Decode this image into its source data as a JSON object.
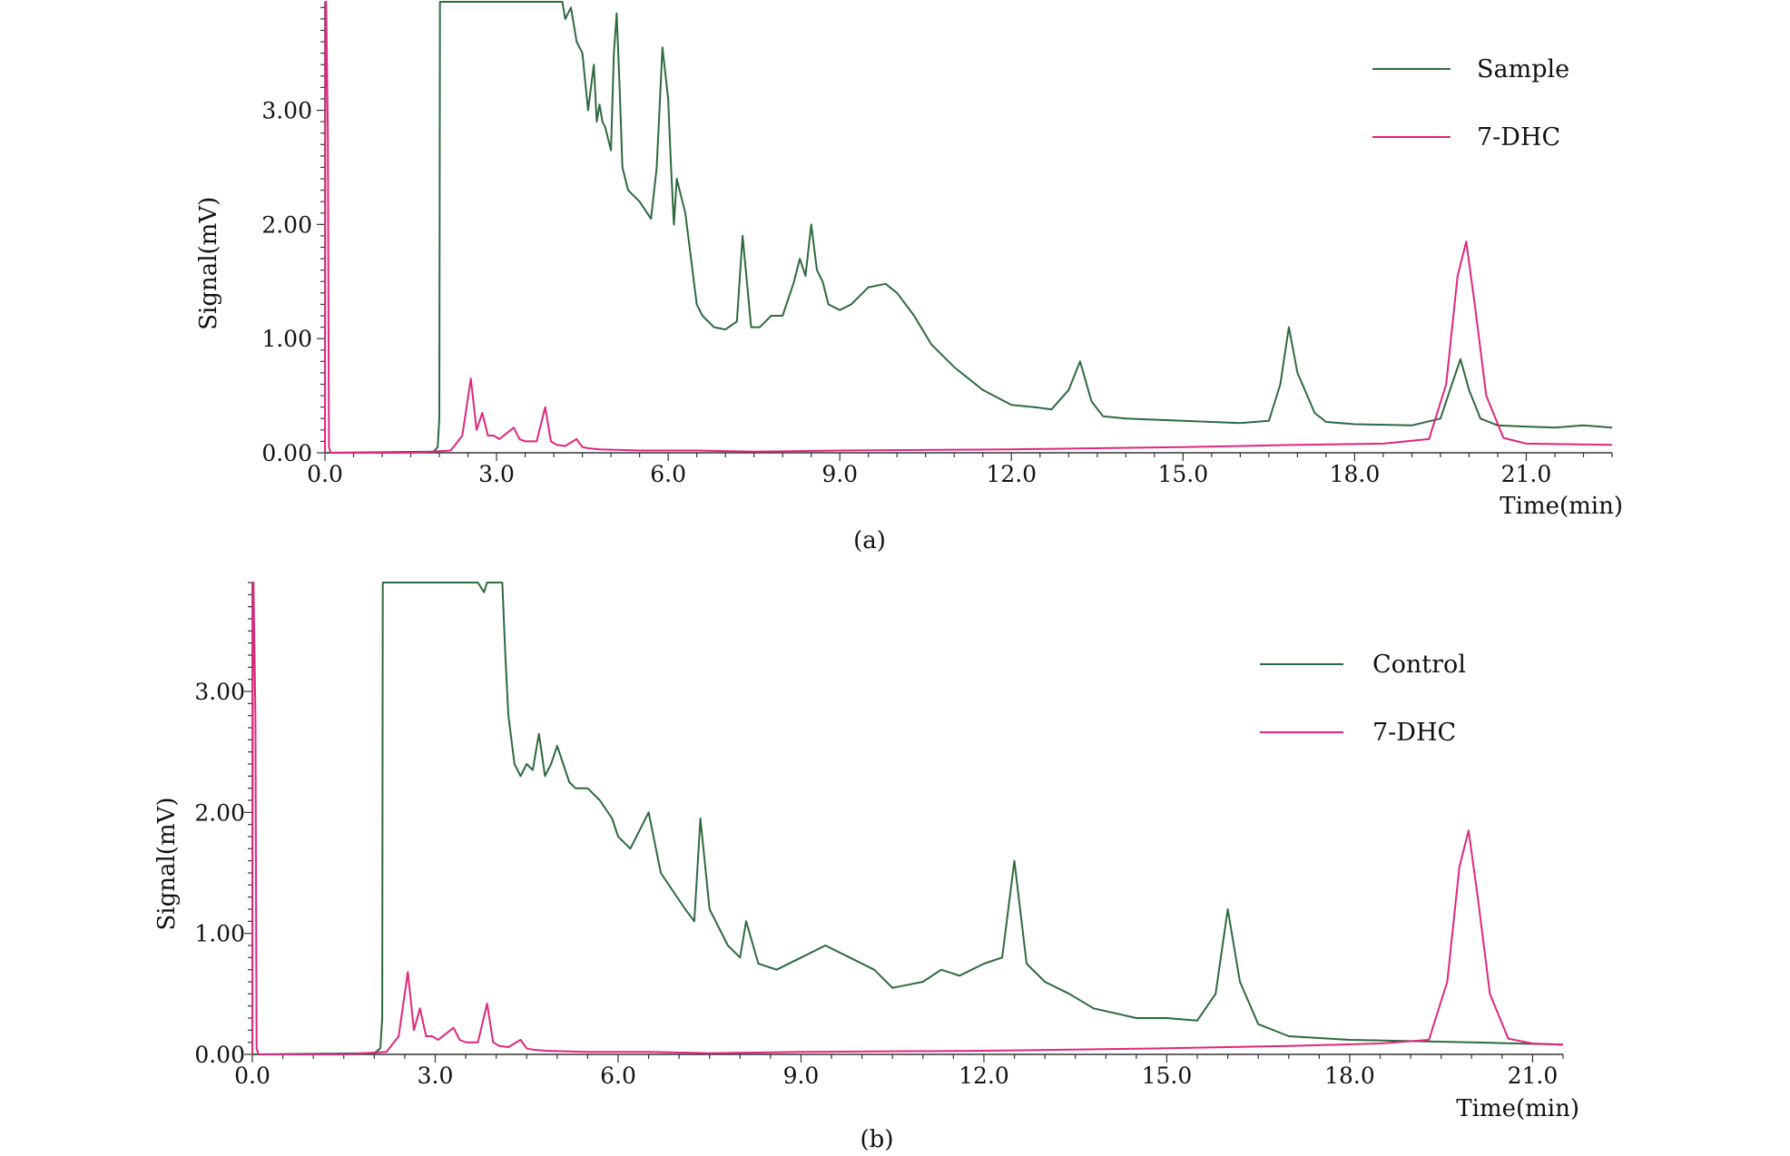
{
  "colors": {
    "green": "#2d6a3e",
    "magenta": "#e0267d",
    "axis": "#333333"
  },
  "chart_data": [
    {
      "type": "line",
      "caption": "(a)",
      "xlabel": "Time(min)",
      "ylabel": "Signal(mV)",
      "xlim": [
        0,
        22.5
      ],
      "ylim": [
        0,
        3.95
      ],
      "xticks": [
        0,
        3,
        6,
        9,
        12,
        15,
        18,
        21
      ],
      "xtick_labels": [
        "0.0",
        "3.0",
        "6.0",
        "9.0",
        "12.0",
        "15.0",
        "18.0",
        "21.0"
      ],
      "yticks": [
        0,
        1,
        2,
        3
      ],
      "ytick_labels": [
        "0.00",
        "1.00",
        "2.00",
        "3.00"
      ],
      "legend_position": "top-right",
      "series": [
        {
          "name": "Sample",
          "color": "green",
          "x": [
            0,
            1.9,
            1.97,
            2.0,
            2.01,
            2.02,
            2.5,
            3.0,
            3.5,
            4.0,
            4.15,
            4.2,
            4.3,
            4.4,
            4.5,
            4.6,
            4.7,
            4.75,
            4.8,
            4.85,
            4.9,
            5.0,
            5.05,
            5.1,
            5.15,
            5.2,
            5.3,
            5.5,
            5.7,
            5.8,
            5.9,
            6.0,
            6.05,
            6.1,
            6.15,
            6.2,
            6.3,
            6.4,
            6.5,
            6.6,
            6.8,
            7.0,
            7.2,
            7.3,
            7.45,
            7.6,
            7.8,
            8.0,
            8.2,
            8.3,
            8.4,
            8.5,
            8.6,
            8.7,
            8.8,
            9.0,
            9.2,
            9.5,
            9.8,
            10.0,
            10.3,
            10.6,
            11.0,
            11.5,
            12.0,
            12.4,
            12.7,
            13.0,
            13.2,
            13.4,
            13.6,
            14.0,
            14.5,
            15.0,
            15.5,
            16.0,
            16.5,
            16.7,
            16.85,
            17.0,
            17.3,
            17.5,
            18.0,
            19.0,
            19.5,
            19.7,
            19.85,
            20.0,
            20.2,
            20.5,
            21.0,
            21.5,
            22.0,
            22.5
          ],
          "y": [
            0.0,
            0.01,
            0.05,
            0.3,
            4.0,
            4.0,
            4.0,
            4.0,
            4.0,
            4.0,
            4.0,
            3.8,
            3.9,
            3.6,
            3.5,
            3.0,
            3.4,
            2.9,
            3.05,
            2.9,
            2.85,
            2.65,
            3.5,
            3.85,
            3.2,
            2.5,
            2.3,
            2.2,
            2.05,
            2.5,
            3.55,
            3.1,
            2.5,
            2.0,
            2.4,
            2.3,
            2.1,
            1.7,
            1.3,
            1.2,
            1.1,
            1.08,
            1.15,
            1.9,
            1.1,
            1.1,
            1.2,
            1.2,
            1.5,
            1.7,
            1.55,
            2.0,
            1.6,
            1.5,
            1.3,
            1.25,
            1.3,
            1.45,
            1.48,
            1.4,
            1.2,
            0.95,
            0.75,
            0.55,
            0.42,
            0.4,
            0.38,
            0.55,
            0.8,
            0.45,
            0.32,
            0.3,
            0.29,
            0.28,
            0.27,
            0.26,
            0.28,
            0.6,
            1.1,
            0.7,
            0.35,
            0.27,
            0.25,
            0.24,
            0.3,
            0.6,
            0.82,
            0.55,
            0.3,
            0.24,
            0.23,
            0.22,
            0.24,
            0.22
          ]
        },
        {
          "name": "7-DHC",
          "color": "magenta",
          "x": [
            0,
            0.01,
            0.02,
            0.05,
            0.07,
            0.1,
            1.5,
            2.2,
            2.4,
            2.55,
            2.65,
            2.75,
            2.85,
            2.95,
            3.05,
            3.3,
            3.4,
            3.5,
            3.7,
            3.85,
            3.95,
            4.05,
            4.2,
            4.4,
            4.5,
            4.6,
            4.8,
            5.5,
            6.5,
            7.5,
            9.0,
            12.0,
            15.0,
            17.0,
            18.5,
            19.3,
            19.6,
            19.8,
            19.95,
            20.1,
            20.3,
            20.6,
            21.0,
            22.5
          ],
          "y": [
            0.0,
            3.95,
            3.95,
            2.8,
            0.05,
            0.0,
            0.0,
            0.02,
            0.15,
            0.65,
            0.2,
            0.35,
            0.15,
            0.15,
            0.12,
            0.22,
            0.12,
            0.1,
            0.1,
            0.4,
            0.1,
            0.07,
            0.06,
            0.12,
            0.05,
            0.04,
            0.03,
            0.02,
            0.02,
            0.01,
            0.02,
            0.03,
            0.05,
            0.07,
            0.08,
            0.12,
            0.6,
            1.55,
            1.85,
            1.3,
            0.5,
            0.13,
            0.08,
            0.07
          ]
        }
      ]
    },
    {
      "type": "line",
      "caption": "(b)",
      "xlabel": "Time(min)",
      "ylabel": "Signal(mV)",
      "xlim": [
        0,
        21.5
      ],
      "ylim": [
        0,
        3.9
      ],
      "xticks": [
        0,
        3,
        6,
        9,
        12,
        15,
        18,
        21
      ],
      "xtick_labels": [
        "0.0",
        "3.0",
        "6.0",
        "9.0",
        "12.0",
        "15.0",
        "18.0",
        "21.0"
      ],
      "yticks": [
        0,
        1,
        2,
        3
      ],
      "ytick_labels": [
        "0.00",
        "1.00",
        "2.00",
        "3.00"
      ],
      "legend_position": "top-right",
      "series": [
        {
          "name": "Control",
          "color": "green",
          "x": [
            0,
            2.0,
            2.1,
            2.13,
            2.14,
            3.7,
            3.8,
            3.85,
            3.9,
            4.1,
            4.15,
            4.2,
            4.3,
            4.4,
            4.5,
            4.6,
            4.7,
            4.8,
            4.9,
            5.0,
            5.1,
            5.2,
            5.3,
            5.5,
            5.7,
            5.9,
            6.0,
            6.2,
            6.35,
            6.5,
            6.7,
            6.9,
            7.1,
            7.25,
            7.35,
            7.5,
            7.8,
            8.0,
            8.1,
            8.3,
            8.6,
            9.0,
            9.4,
            9.8,
            10.2,
            10.5,
            10.8,
            11.0,
            11.3,
            11.6,
            12.0,
            12.3,
            12.5,
            12.7,
            13.0,
            13.4,
            13.8,
            14.5,
            15.0,
            15.5,
            15.8,
            16.0,
            16.2,
            16.5,
            17.0,
            18.0,
            20.0,
            21.5
          ],
          "y": [
            0.0,
            0.01,
            0.05,
            0.3,
            3.9,
            3.9,
            3.82,
            3.9,
            3.9,
            3.9,
            3.3,
            2.8,
            2.4,
            2.3,
            2.4,
            2.35,
            2.65,
            2.3,
            2.4,
            2.55,
            2.4,
            2.25,
            2.2,
            2.2,
            2.1,
            1.95,
            1.8,
            1.7,
            1.85,
            2.0,
            1.5,
            1.35,
            1.2,
            1.1,
            1.95,
            1.2,
            0.9,
            0.8,
            1.1,
            0.75,
            0.7,
            0.8,
            0.9,
            0.8,
            0.7,
            0.55,
            0.58,
            0.6,
            0.7,
            0.65,
            0.75,
            0.8,
            1.6,
            0.75,
            0.6,
            0.5,
            0.38,
            0.3,
            0.3,
            0.28,
            0.5,
            1.2,
            0.6,
            0.25,
            0.15,
            0.12,
            0.1,
            0.08
          ]
        },
        {
          "name": "7-DHC",
          "color": "magenta",
          "x": [
            0,
            0.01,
            0.02,
            0.05,
            0.07,
            0.1,
            1.5,
            2.2,
            2.4,
            2.55,
            2.65,
            2.75,
            2.85,
            2.95,
            3.05,
            3.3,
            3.4,
            3.5,
            3.7,
            3.85,
            3.95,
            4.05,
            4.2,
            4.4,
            4.5,
            4.6,
            4.8,
            5.5,
            6.5,
            7.5,
            9.0,
            12.0,
            15.0,
            17.0,
            18.5,
            19.3,
            19.6,
            19.8,
            19.95,
            20.1,
            20.3,
            20.6,
            21.0,
            21.5
          ],
          "y": [
            0.0,
            3.9,
            3.9,
            2.8,
            0.05,
            0.0,
            0.0,
            0.02,
            0.15,
            0.68,
            0.2,
            0.38,
            0.15,
            0.15,
            0.12,
            0.22,
            0.12,
            0.1,
            0.1,
            0.42,
            0.1,
            0.07,
            0.06,
            0.12,
            0.05,
            0.04,
            0.03,
            0.02,
            0.02,
            0.01,
            0.02,
            0.03,
            0.05,
            0.07,
            0.09,
            0.12,
            0.6,
            1.55,
            1.85,
            1.3,
            0.5,
            0.13,
            0.09,
            0.08
          ]
        }
      ]
    }
  ]
}
